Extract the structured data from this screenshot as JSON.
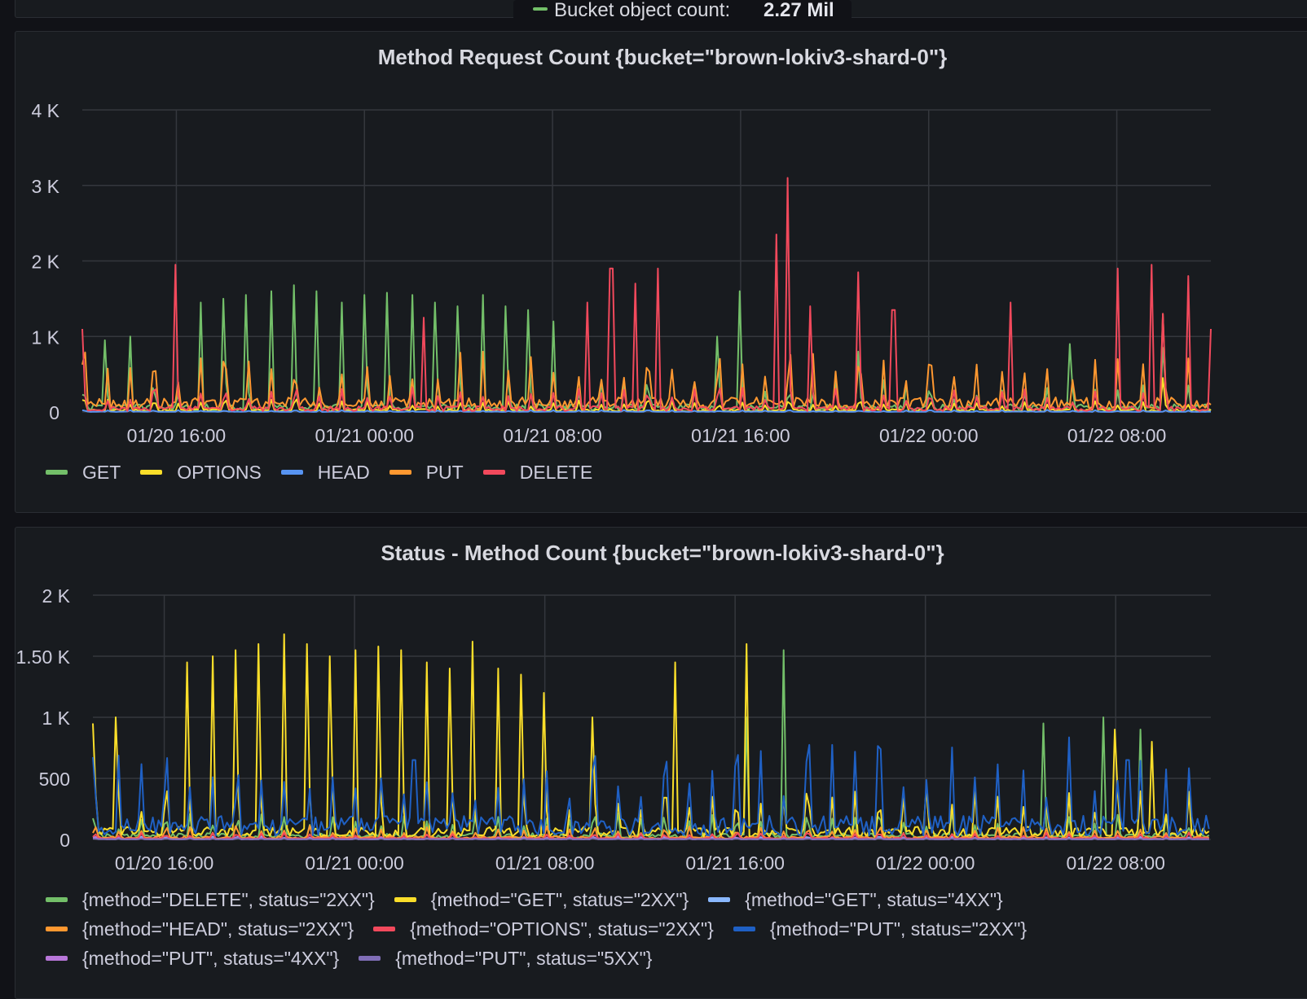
{
  "top_tooltip": {
    "label": "Bucket object count:",
    "value": "2.27 Mil",
    "color": "#73bf69"
  },
  "chart_data": [
    {
      "type": "line",
      "title": "Method Request Count {bucket=\"brown-lokiv3-shard-0\"}",
      "xlabel": "",
      "ylabel": "",
      "x_range": [
        "01/20 12:00",
        "01/22 12:00"
      ],
      "ylim": [
        0,
        4000
      ],
      "y_ticks": [
        {
          "value": 0,
          "label": "0"
        },
        {
          "value": 1000,
          "label": "1 K"
        },
        {
          "value": 2000,
          "label": "2 K"
        },
        {
          "value": 3000,
          "label": "3 K"
        },
        {
          "value": 4000,
          "label": "4 K"
        }
      ],
      "x_ticks": [
        {
          "hour": 4,
          "label": "01/20 16:00"
        },
        {
          "hour": 12,
          "label": "01/21 00:00"
        },
        {
          "hour": 20,
          "label": "01/21 08:00"
        },
        {
          "hour": 28,
          "label": "01/21 16:00"
        },
        {
          "hour": 36,
          "label": "01/22 00:00"
        },
        {
          "hour": 44,
          "label": "01/22 08:00"
        }
      ],
      "grid": true,
      "legend_position": "bottom",
      "series": [
        {
          "name": "GET",
          "color": "#73bf69",
          "base": 80,
          "peaks": [
            [
              1.0,
              950
            ],
            [
              2.0,
              1000
            ],
            [
              5.0,
              1450
            ],
            [
              6.0,
              1500
            ],
            [
              7.0,
              1550
            ],
            [
              8.0,
              1600
            ],
            [
              9.0,
              1680
            ],
            [
              10.0,
              1600
            ],
            [
              11.0,
              1450
            ],
            [
              12.0,
              1550
            ],
            [
              13.0,
              1580
            ],
            [
              14.0,
              1550
            ],
            [
              15.0,
              1450
            ],
            [
              16.0,
              1400
            ],
            [
              17.0,
              1550
            ],
            [
              18.0,
              1400
            ],
            [
              19.0,
              1350
            ],
            [
              20.0,
              1200
            ],
            [
              27.0,
              1000
            ],
            [
              28.0,
              1600
            ],
            [
              33.0,
              800
            ],
            [
              42.0,
              900
            ],
            [
              46.0,
              850
            ]
          ]
        },
        {
          "name": "OPTIONS",
          "color": "#fade2a",
          "base": 30,
          "peaks": [
            [
              46.0,
              450
            ]
          ]
        },
        {
          "name": "HEAD",
          "color": "#5794f2",
          "base": 5,
          "peaks": []
        },
        {
          "name": "PUT",
          "color": "#ff9830",
          "base": 150,
          "peaks": [
            [
              46.0,
              1300
            ]
          ]
        },
        {
          "name": "DELETE",
          "color": "#f2495c",
          "base": 60,
          "peaks": [
            [
              0.0,
              1100
            ],
            [
              4.0,
              1950
            ],
            [
              14.5,
              1250
            ],
            [
              21.5,
              1450
            ],
            [
              22.5,
              1900
            ],
            [
              23.5,
              1700
            ],
            [
              24.5,
              1900
            ],
            [
              29.5,
              2350
            ],
            [
              30.0,
              3100
            ],
            [
              31.0,
              1400
            ],
            [
              33.0,
              1850
            ],
            [
              34.5,
              1350
            ],
            [
              39.5,
              1450
            ],
            [
              44.0,
              1900
            ],
            [
              45.5,
              1950
            ],
            [
              46.0,
              1300
            ],
            [
              47.0,
              1800
            ],
            [
              48.0,
              1100
            ]
          ]
        }
      ]
    },
    {
      "type": "line",
      "title": "Status - Method Count {bucket=\"brown-lokiv3-shard-0\"}",
      "xlabel": "",
      "ylabel": "",
      "x_range": [
        "01/20 13:00",
        "01/22 12:00"
      ],
      "ylim": [
        0,
        2000
      ],
      "y_ticks": [
        {
          "value": 0,
          "label": "0"
        },
        {
          "value": 500,
          "label": "500"
        },
        {
          "value": 1000,
          "label": "1 K"
        },
        {
          "value": 1500,
          "label": "1.50 K"
        },
        {
          "value": 2000,
          "label": "2 K"
        }
      ],
      "x_ticks": [
        {
          "hour": 4,
          "label": "01/20 16:00"
        },
        {
          "hour": 12,
          "label": "01/21 00:00"
        },
        {
          "hour": 20,
          "label": "01/21 08:00"
        },
        {
          "hour": 28,
          "label": "01/21 16:00"
        },
        {
          "hour": 36,
          "label": "01/22 00:00"
        },
        {
          "hour": 44,
          "label": "01/22 08:00"
        }
      ],
      "grid": true,
      "legend_position": "bottom",
      "series": [
        {
          "name": "{method=\"DELETE\", status=\"2XX\"}",
          "color": "#73bf69",
          "base": 40,
          "peaks": [
            [
              28.5,
              1000
            ],
            [
              30.0,
              1550
            ],
            [
              41.0,
              950
            ],
            [
              43.5,
              1000
            ],
            [
              45.0,
              900
            ]
          ]
        },
        {
          "name": "{method=\"GET\", status=\"2XX\"}",
          "color": "#fade2a",
          "base": 80,
          "peaks": [
            [
              1.0,
              950
            ],
            [
              2.0,
              1000
            ],
            [
              5.0,
              1450
            ],
            [
              6.0,
              1500
            ],
            [
              7.0,
              1550
            ],
            [
              8.0,
              1600
            ],
            [
              9.0,
              1680
            ],
            [
              10.0,
              1600
            ],
            [
              11.0,
              1500
            ],
            [
              12.0,
              1550
            ],
            [
              13.0,
              1580
            ],
            [
              14.0,
              1550
            ],
            [
              15.0,
              1450
            ],
            [
              16.0,
              1400
            ],
            [
              17.0,
              1620
            ],
            [
              18.0,
              1400
            ],
            [
              19.0,
              1350
            ],
            [
              20.0,
              1200
            ],
            [
              22.0,
              1000
            ],
            [
              25.5,
              1450
            ],
            [
              28.5,
              1600
            ],
            [
              44.0,
              900
            ],
            [
              45.5,
              800
            ]
          ]
        },
        {
          "name": "{method=\"GET\", status=\"4XX\"}",
          "color": "#8ab8ff",
          "base": 5,
          "peaks": []
        },
        {
          "name": "{method=\"HEAD\", status=\"2XX\"}",
          "color": "#ff9830",
          "base": 20,
          "peaks": []
        },
        {
          "name": "{method=\"OPTIONS\", status=\"2XX\"}",
          "color": "#f2495c",
          "base": 10,
          "peaks": []
        },
        {
          "name": "{method=\"PUT\", status=\"2XX\"}",
          "color": "#1f60c4",
          "base": 150,
          "peaks": [
            [
              14.5,
              650
            ],
            [
              28.0,
              600
            ],
            [
              44.5,
              650
            ]
          ]
        },
        {
          "name": "{method=\"PUT\", status=\"4XX\"}",
          "color": "#b877d9",
          "base": 3,
          "peaks": []
        },
        {
          "name": "{method=\"PUT\", status=\"5XX\"}",
          "color": "#806eb7",
          "base": 2,
          "peaks": []
        }
      ]
    }
  ]
}
